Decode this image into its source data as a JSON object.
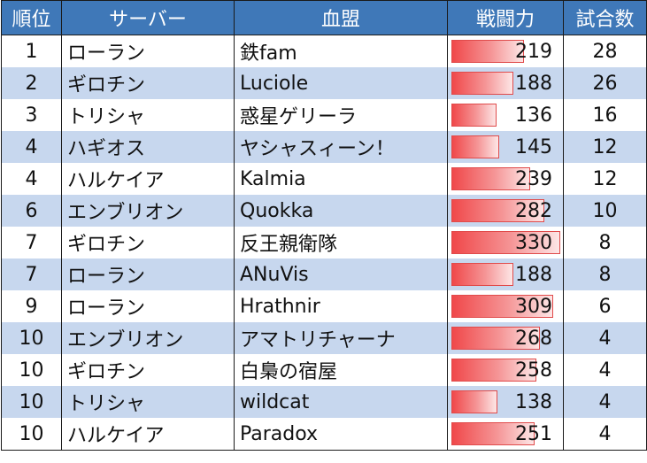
{
  "headers": [
    "順位",
    "サーバー",
    "血盟",
    "戦闘力",
    "試合数"
  ],
  "power_scale_max": 340,
  "rows": [
    {
      "rank": "1",
      "server": "ローラン",
      "guild": "鉄fam",
      "power": 219,
      "matches": "28"
    },
    {
      "rank": "2",
      "server": "ギロチン",
      "guild": "Luciole",
      "power": 188,
      "matches": "26"
    },
    {
      "rank": "3",
      "server": "トリシャ",
      "guild": "惑星ゲリーラ",
      "power": 136,
      "matches": "16"
    },
    {
      "rank": "4",
      "server": "ハギオス",
      "guild": "ヤシャスィーン！",
      "power": 145,
      "matches": "12"
    },
    {
      "rank": "4",
      "server": "ハルケイア",
      "guild": "Kalmia",
      "power": 239,
      "matches": "12"
    },
    {
      "rank": "6",
      "server": "エンブリオン",
      "guild": "Quokka",
      "power": 282,
      "matches": "10"
    },
    {
      "rank": "7",
      "server": "ギロチン",
      "guild": "反王親衛隊",
      "power": 330,
      "matches": "8"
    },
    {
      "rank": "7",
      "server": "ローラン",
      "guild": "ANuVis",
      "power": 188,
      "matches": "8"
    },
    {
      "rank": "9",
      "server": "ローラン",
      "guild": "Hrathnir",
      "power": 309,
      "matches": "6"
    },
    {
      "rank": "10",
      "server": "エンブリオン",
      "guild": "アマトリチャーナ",
      "power": 268,
      "matches": "4"
    },
    {
      "rank": "10",
      "server": "ギロチン",
      "guild": "白梟の宿屋",
      "power": 258,
      "matches": "4"
    },
    {
      "rank": "10",
      "server": "トリシャ",
      "guild": "wildcat",
      "power": 138,
      "matches": "4"
    },
    {
      "rank": "10",
      "server": "ハルケイア",
      "guild": "Paradox",
      "power": 251,
      "matches": "4"
    }
  ]
}
